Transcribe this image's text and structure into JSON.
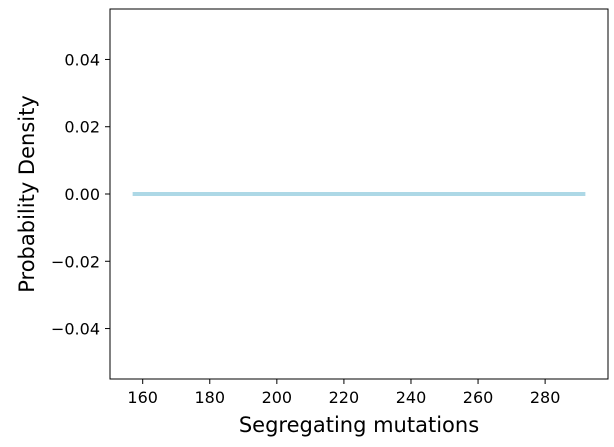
{
  "chart_data": {
    "type": "line",
    "title": "",
    "xlabel": "Segregating mutations",
    "ylabel": "Probability Density",
    "xlim": [
      150.25,
      298.75
    ],
    "ylim": [
      -0.055,
      0.055
    ],
    "x_ticks": [
      160,
      180,
      200,
      220,
      240,
      260,
      280
    ],
    "x_tick_labels": [
      "160",
      "180",
      "200",
      "220",
      "240",
      "260",
      "280"
    ],
    "y_ticks": [
      0.04,
      0.02,
      0.0,
      -0.02,
      -0.04
    ],
    "y_tick_labels": [
      "0.04",
      "0.02",
      "0.00",
      "−0.02",
      "−0.04"
    ],
    "grid": false,
    "series": [
      {
        "color": "#add8e6",
        "x": [
          157,
          292
        ],
        "y": [
          0,
          0
        ]
      }
    ]
  }
}
